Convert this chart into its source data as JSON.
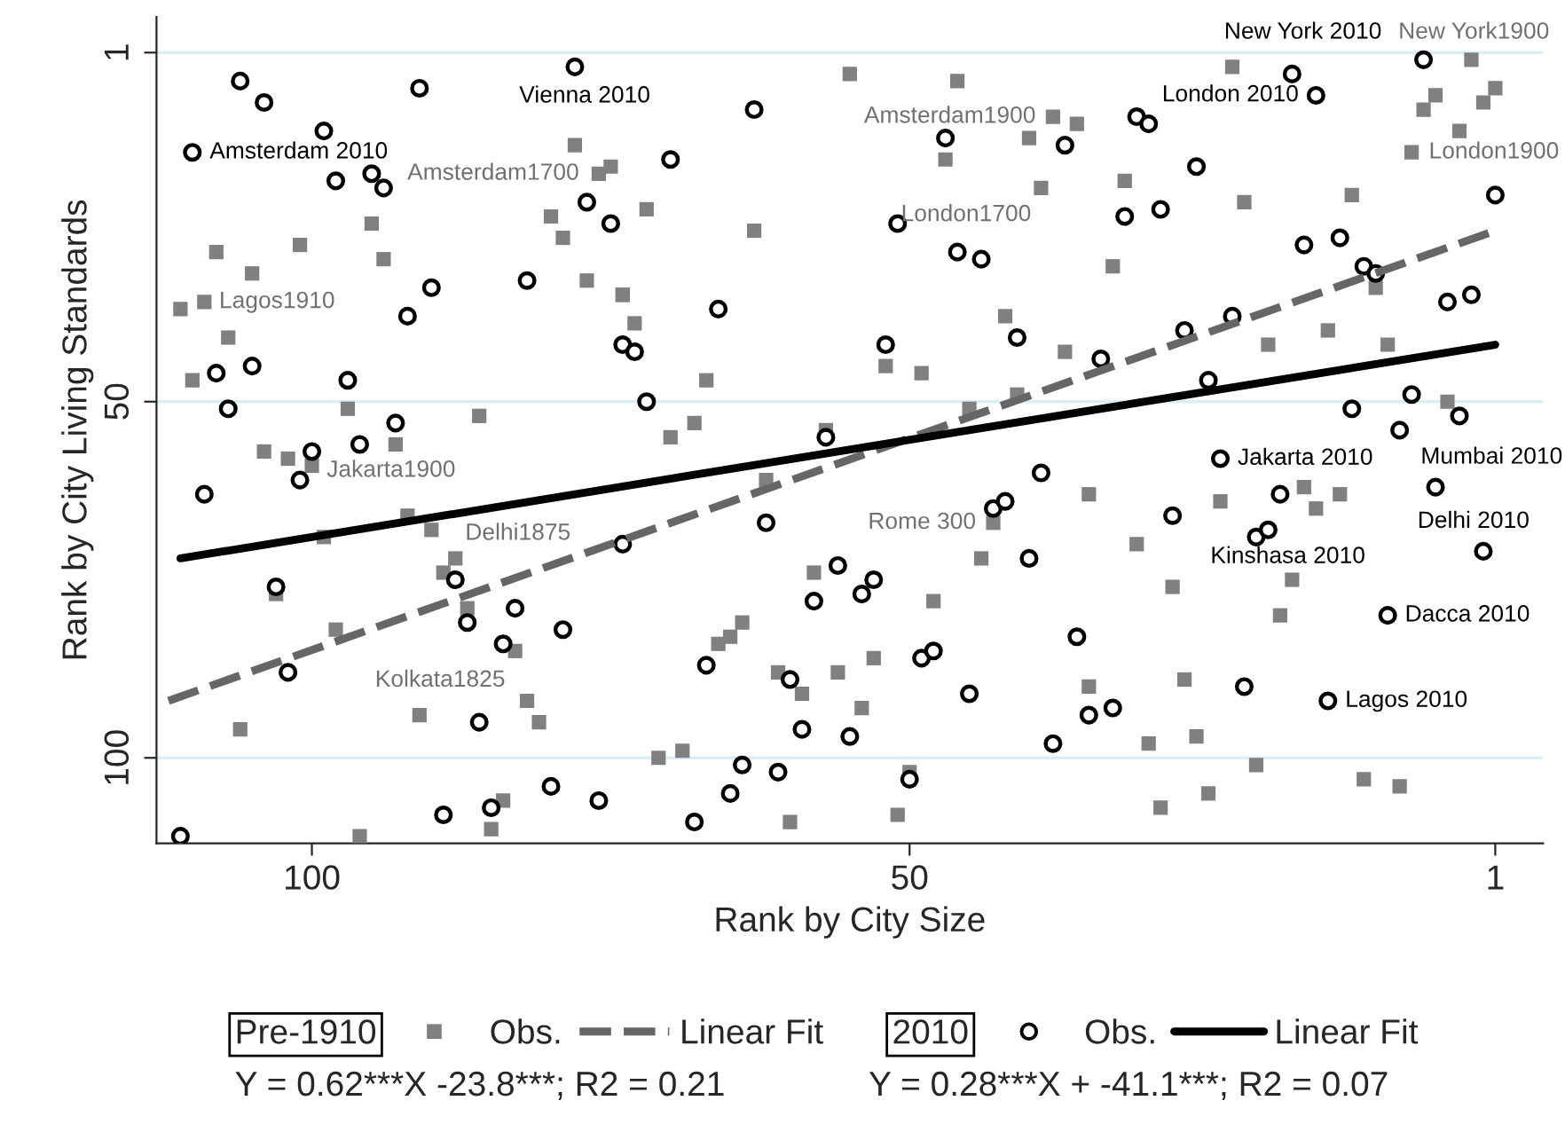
{
  "chart_data": {
    "type": "scatter",
    "xlabel": "Rank by City Size",
    "ylabel": "Rank by City Living Standards",
    "xlim": [
      113,
      -3
    ],
    "ylim": [
      112,
      -4
    ],
    "xticks": [
      100,
      50,
      1
    ],
    "yticks": [
      1,
      50,
      100
    ],
    "grid": "y",
    "legend": "bottom",
    "series": [
      {
        "name": "Obs.",
        "marker": "square",
        "color": "#808080",
        "x": [
          78,
          75,
          76,
          95,
          108,
          101,
          80,
          79,
          105,
          94,
          77,
          111,
          109,
          107,
          110,
          74,
          97,
          86,
          55,
          46,
          38,
          36,
          40,
          47,
          39,
          72,
          63,
          73,
          74,
          42,
          52,
          49,
          37,
          67,
          41,
          45,
          23,
          3,
          6,
          7,
          1,
          2,
          4,
          8,
          32,
          22,
          13,
          33,
          11,
          15,
          20,
          10,
          5,
          104,
          102,
          100,
          93,
          92,
          90,
          99,
          88,
          89,
          103,
          87,
          98,
          83,
          106,
          91,
          82,
          81,
          84,
          70,
          68,
          57,
          62,
          43,
          44,
          58,
          48,
          64,
          65,
          66,
          61,
          59,
          56,
          53,
          54,
          35,
          35,
          71,
          69,
          50,
          60,
          51,
          17,
          14,
          16,
          24,
          31,
          18,
          28,
          19,
          27,
          30,
          26,
          21,
          12,
          9,
          25,
          29,
          96,
          85
        ],
        "values": [
          14,
          17,
          18,
          25,
          29,
          28,
          24,
          27,
          32,
          30,
          33,
          37,
          36,
          41,
          47,
          35,
          51,
          52,
          4,
          5,
          10,
          11,
          13,
          16,
          20,
          23,
          26,
          39,
          35,
          38,
          45,
          46,
          43,
          47,
          49,
          51,
          3,
          2,
          7,
          9,
          6,
          8,
          12,
          15,
          19,
          22,
          21,
          31,
          34,
          40,
          42,
          42,
          50,
          57,
          58,
          59,
          56,
          66,
          68,
          69,
          72,
          74,
          77,
          79,
          82,
          85,
          96,
          94,
          92,
          95,
          106,
          55,
          53,
          54,
          61,
          67,
          72,
          74,
          78,
          81,
          83,
          84,
          88,
          91,
          88,
          86,
          93,
          63,
          90,
          100,
          99,
          102,
          109,
          108,
          62,
          63,
          65,
          64,
          70,
          75,
          76,
          80,
          89,
          98,
          97,
          101,
          103,
          104,
          105,
          107,
          111,
          110
        ]
      },
      {
        "name": "Linear Fit",
        "type": "line",
        "line_style": "dashed",
        "color": "#666666",
        "x": [
          112,
          1
        ],
        "values": [
          92,
          26
        ]
      },
      {
        "name": "Obs.",
        "marker": "circle",
        "color": "#000000",
        "x": [
          111,
          106,
          104,
          91,
          78,
          99,
          110,
          98,
          95,
          94,
          77,
          75,
          82,
          90,
          92,
          105,
          108,
          97,
          107,
          74,
          63,
          70,
          47,
          37,
          51,
          46,
          44,
          66,
          73,
          52,
          41,
          72,
          34,
          18,
          16,
          7,
          31,
          30,
          26,
          32,
          29,
          1,
          17,
          14,
          12,
          11,
          5,
          3,
          27,
          23,
          25,
          13,
          8,
          4,
          93,
          96,
          100,
          101,
          109,
          103,
          88,
          83,
          87,
          79,
          84,
          102,
          86,
          80,
          76,
          85,
          89,
          74,
          57,
          39,
          62,
          43,
          42,
          40,
          56,
          53,
          54,
          58,
          36,
          67,
          60,
          49,
          48,
          45,
          35,
          59,
          55,
          38,
          64,
          61,
          50,
          65,
          68,
          9,
          24,
          19,
          6,
          28,
          21,
          20,
          2,
          10,
          22,
          15,
          33
        ],
        "values": [
          111,
          5,
          8,
          6,
          3,
          12,
          15,
          19,
          18,
          20,
          22,
          25,
          33,
          34,
          38,
          45,
          46,
          47,
          51,
          42,
          9,
          16,
          13,
          14,
          25,
          29,
          30,
          37,
          43,
          42,
          41,
          50,
          44,
          4,
          7,
          2,
          10,
          11,
          17,
          24,
          23,
          21,
          28,
          27,
          31,
          32,
          36,
          35,
          40,
          38,
          47,
          51,
          49,
          52,
          53,
          56,
          57,
          61,
          63,
          76,
          75,
          79,
          81,
          82,
          84,
          88,
          95,
          104,
          106,
          107,
          108,
          70,
          55,
          60,
          67,
          65,
          64,
          72,
          73,
          75,
          77,
          78,
          83,
          87,
          89,
          86,
          85,
          91,
          94,
          96,
          97,
          98,
          101,
          102,
          103,
          105,
          109,
          54,
          58,
          63,
          62,
          66,
          69,
          68,
          71,
          80,
          90,
          92,
          93
        ]
      },
      {
        "name": "Linear Fit",
        "type": "line",
        "line_style": "solid",
        "color": "#000000",
        "x": [
          111,
          1
        ],
        "values": [
          72,
          42
        ]
      }
    ],
    "annotations": [
      {
        "text": "Vienna 2010",
        "x": 78,
        "y": 3
      },
      {
        "text": "Amsterdam 2010",
        "x": 110,
        "y": 15
      },
      {
        "text": "Amsterdam1700",
        "x": 76,
        "y": 18
      },
      {
        "text": "Lagos1910",
        "x": 109,
        "y": 36
      },
      {
        "text": "Jakarta1900",
        "x": 100,
        "y": 59
      },
      {
        "text": "Delhi1875",
        "x": 88,
        "y": 72
      },
      {
        "text": "Kolkata1825",
        "x": 83,
        "y": 85
      },
      {
        "text": "Amsterdam1900",
        "x": 38,
        "y": 10
      },
      {
        "text": "London1700",
        "x": 39,
        "y": 20
      },
      {
        "text": "Rome 300",
        "x": 43,
        "y": 67
      },
      {
        "text": "New York 2010",
        "x": 7,
        "y": 2
      },
      {
        "text": "New York1900",
        "x": 3,
        "y": 2
      },
      {
        "text": "London 2010",
        "x": 16,
        "y": 7
      },
      {
        "text": "London1900",
        "x": 8,
        "y": 15
      },
      {
        "text": "Jakarta 2010",
        "x": 24,
        "y": 58
      },
      {
        "text": "Mumbai 2010",
        "x": 6,
        "y": 62
      },
      {
        "text": "Kinshasa 2010",
        "x": 20,
        "y": 68
      },
      {
        "text": "Delhi 2010",
        "x": 2,
        "y": 71
      },
      {
        "text": "Dacca 2010",
        "x": 10,
        "y": 80
      },
      {
        "text": "Lagos 2010",
        "x": 15,
        "y": 92
      },
      "Pre-1910",
      "2010",
      "Y = 0.62***X -23.8***; R2 = 0.21",
      "Y = 0.28***X + -41.1***; R2 = 0.07"
    ]
  }
}
